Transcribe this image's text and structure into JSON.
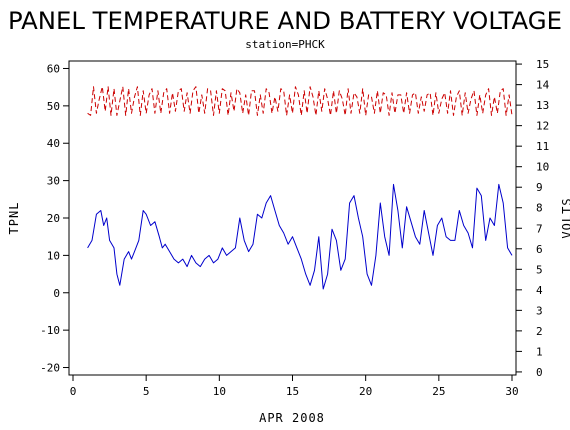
{
  "chart_data": {
    "type": "line",
    "title": "PANEL TEMPERATURE AND BATTERY VOLTAGE",
    "subtitle": "station=PHCK",
    "xlabel": "APR 2008",
    "ylabel": "TPNL",
    "y2label": "VOLTS",
    "xlim": [
      0,
      30
    ],
    "ylim": [
      -22,
      62
    ],
    "y2lim": [
      -0.15,
      15.15
    ],
    "x_ticks": [
      0,
      5,
      10,
      15,
      20,
      25,
      30
    ],
    "y_ticks": [
      -20,
      -10,
      0,
      10,
      20,
      30,
      40,
      50,
      60
    ],
    "y2_ticks": [
      0,
      1,
      2,
      3,
      4,
      5,
      6,
      7,
      8,
      9,
      10,
      11,
      12,
      13,
      14,
      15
    ],
    "grid": false,
    "series": [
      {
        "axis": "left",
        "color": "#0000cc",
        "style": "solid",
        "x": [
          1.0,
          1.3,
          1.6,
          1.9,
          2.1,
          2.3,
          2.5,
          2.8,
          3.0,
          3.2,
          3.5,
          3.8,
          4.0,
          4.2,
          4.5,
          4.8,
          5.0,
          5.3,
          5.6,
          5.9,
          6.1,
          6.3,
          6.6,
          6.9,
          7.2,
          7.5,
          7.8,
          8.1,
          8.4,
          8.7,
          9.0,
          9.3,
          9.6,
          9.9,
          10.2,
          10.5,
          10.8,
          11.1,
          11.4,
          11.7,
          12.0,
          12.3,
          12.6,
          12.9,
          13.2,
          13.5,
          13.8,
          14.1,
          14.4,
          14.7,
          15.0,
          15.3,
          15.6,
          15.9,
          16.2,
          16.5,
          16.8,
          17.1,
          17.4,
          17.7,
          18.0,
          18.3,
          18.6,
          18.9,
          19.2,
          19.5,
          19.8,
          20.1,
          20.4,
          20.7,
          21.0,
          21.3,
          21.6,
          21.9,
          22.2,
          22.5,
          22.8,
          23.1,
          23.4,
          23.7,
          24.0,
          24.3,
          24.6,
          24.9,
          25.2,
          25.5,
          25.8,
          26.1,
          26.4,
          26.7,
          27.0,
          27.3,
          27.6,
          27.9,
          28.2,
          28.5,
          28.8,
          29.1,
          29.4,
          29.7,
          30.0
        ],
        "values": [
          12,
          14,
          21,
          22,
          18,
          20,
          14,
          12,
          5,
          2,
          9,
          11,
          9,
          11,
          14,
          22,
          21,
          18,
          19,
          15,
          12,
          13,
          11,
          9,
          8,
          9,
          7,
          10,
          8,
          7,
          9,
          10,
          8,
          9,
          12,
          10,
          11,
          12,
          20,
          14,
          11,
          13,
          21,
          20,
          24,
          26,
          22,
          18,
          16,
          13,
          15,
          12,
          9,
          5,
          2,
          6,
          15,
          1,
          5,
          17,
          14,
          6,
          9,
          24,
          26,
          20,
          15,
          5,
          2,
          10,
          24,
          15,
          10,
          29,
          22,
          12,
          23,
          19,
          15,
          13,
          22,
          16,
          10,
          18,
          20,
          15,
          14,
          14,
          22,
          18,
          16,
          12,
          28,
          26,
          14,
          20,
          18,
          29,
          24,
          12,
          10
        ]
      },
      {
        "axis": "right",
        "color": "#cc0000",
        "style": "dashed",
        "x": [
          1.0,
          1.2,
          1.4,
          1.6,
          1.8,
          2.0,
          2.2,
          2.4,
          2.6,
          2.8,
          3.0,
          3.2,
          3.4,
          3.6,
          3.8,
          4.0,
          4.2,
          4.4,
          4.6,
          4.8,
          5.0,
          5.2,
          5.4,
          5.6,
          5.8,
          6.0,
          6.2,
          6.4,
          6.6,
          6.8,
          7.0,
          7.2,
          7.4,
          7.6,
          7.8,
          8.0,
          8.2,
          8.4,
          8.6,
          8.8,
          9.0,
          9.2,
          9.4,
          9.6,
          9.8,
          10.0,
          10.2,
          10.4,
          10.6,
          10.8,
          11.0,
          11.2,
          11.4,
          11.6,
          11.8,
          12.0,
          12.2,
          12.4,
          12.6,
          12.8,
          13.0,
          13.2,
          13.4,
          13.6,
          13.8,
          14.0,
          14.2,
          14.4,
          14.6,
          14.8,
          15.0,
          15.2,
          15.4,
          15.6,
          15.8,
          16.0,
          16.2,
          16.4,
          16.6,
          16.8,
          17.0,
          17.2,
          17.4,
          17.6,
          17.8,
          18.0,
          18.2,
          18.4,
          18.6,
          18.8,
          19.0,
          19.2,
          19.4,
          19.6,
          19.8,
          20.0,
          20.2,
          20.4,
          20.6,
          20.8,
          21.0,
          21.2,
          21.4,
          21.6,
          21.8,
          22.0,
          22.2,
          22.4,
          22.6,
          22.8,
          23.0,
          23.2,
          23.4,
          23.6,
          23.8,
          24.0,
          24.2,
          24.4,
          24.6,
          24.8,
          25.0,
          25.2,
          25.4,
          25.6,
          25.8,
          26.0,
          26.2,
          26.4,
          26.6,
          26.8,
          27.0,
          27.2,
          27.4,
          27.6,
          27.8,
          28.0,
          28.2,
          28.4,
          28.6,
          28.8,
          29.0,
          29.2,
          29.4,
          29.6,
          29.8,
          30.0
        ],
        "values": [
          12.6,
          12.5,
          13.9,
          12.6,
          13.3,
          13.9,
          12.7,
          13.9,
          12.5,
          13.8,
          12.5,
          13.2,
          13.9,
          12.5,
          13.8,
          12.6,
          13.4,
          13.9,
          12.5,
          13.7,
          12.6,
          13.5,
          13.8,
          12.6,
          13.7,
          12.6,
          13.6,
          13.8,
          12.6,
          13.6,
          12.7,
          13.7,
          13.8,
          12.7,
          13.6,
          12.6,
          13.7,
          13.9,
          12.6,
          13.5,
          12.6,
          13.8,
          13.7,
          12.5,
          13.7,
          12.6,
          13.8,
          13.7,
          12.5,
          13.6,
          12.7,
          13.8,
          13.6,
          12.6,
          13.5,
          12.5,
          13.7,
          13.7,
          12.5,
          13.5,
          12.6,
          13.8,
          13.6,
          12.6,
          13.4,
          12.7,
          13.8,
          13.7,
          12.5,
          13.5,
          12.6,
          13.9,
          13.5,
          12.5,
          13.7,
          12.6,
          13.9,
          13.4,
          12.5,
          13.7,
          12.7,
          13.8,
          13.3,
          12.5,
          13.7,
          12.6,
          13.7,
          13.3,
          12.5,
          13.8,
          12.6,
          13.6,
          13.4,
          12.6,
          13.8,
          12.5,
          13.5,
          13.4,
          12.6,
          13.7,
          12.6,
          13.6,
          13.5,
          12.5,
          13.6,
          12.6,
          13.5,
          13.5,
          12.6,
          13.6,
          12.6,
          13.5,
          13.6,
          12.6,
          13.4,
          12.7,
          13.5,
          13.6,
          12.5,
          13.6,
          12.6,
          13.3,
          13.6,
          12.6,
          13.7,
          12.5,
          13.4,
          13.7,
          12.5,
          13.6,
          12.6,
          13.3,
          13.7,
          12.5,
          13.5,
          12.6,
          13.5,
          13.8,
          12.5,
          13.4,
          12.6,
          13.7,
          13.8,
          12.5,
          13.5,
          12.5
        ]
      }
    ]
  }
}
